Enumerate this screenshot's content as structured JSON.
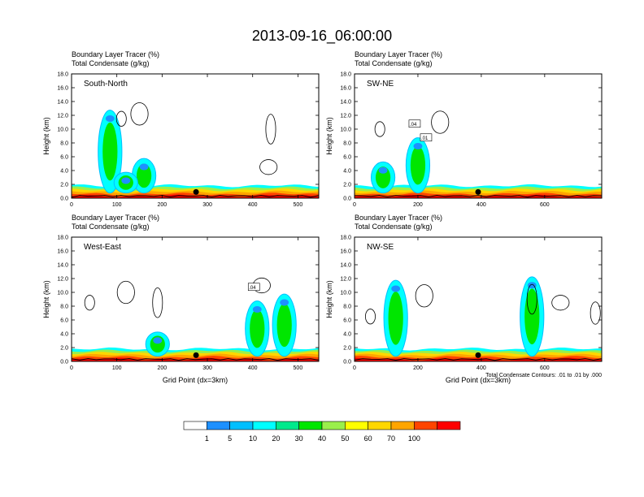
{
  "title": "2013-09-16_06:00:00",
  "colorbar": {
    "labels": [
      "1",
      "5",
      "10",
      "20",
      "30",
      "40",
      "50",
      "60",
      "70",
      "100"
    ],
    "colors": [
      "#ffffff",
      "#1e90ff",
      "#00bfff",
      "#00ffff",
      "#00e98c",
      "#00e600",
      "#9aef4b",
      "#ffff00",
      "#ffd700",
      "#ffa500",
      "#ff4500",
      "#ff0000"
    ]
  },
  "chart_data": [
    {
      "type": "heatmap",
      "section": "South-North",
      "subtitle1": "Boundary Layer Tracer   (%)",
      "subtitle2": "Total Condensate   (g/kg)",
      "ylabel": "Height (km)",
      "xlabel": "",
      "xlim": [
        0,
        546
      ],
      "ylim": [
        0,
        18
      ],
      "xticks": [
        "0",
        "100",
        "200",
        "300",
        "400",
        "500"
      ],
      "yticks": [
        "0.0",
        "2.0",
        "4.0",
        "6.0",
        "8.0",
        "10.0",
        "12.0",
        "14.0",
        "16.0",
        "18.0"
      ],
      "marker_x": 275,
      "cloud_contours": [
        [
          110,
          11.5
        ],
        [
          150,
          12.2
        ],
        [
          440,
          10.0
        ],
        [
          435,
          4.5
        ]
      ],
      "tracer_plumes": [
        [
          85,
          12.0
        ],
        [
          160,
          5.0
        ],
        [
          120,
          3.0
        ]
      ],
      "note": ""
    },
    {
      "type": "heatmap",
      "section": "SW-NE",
      "subtitle1": "Boundary Layer Tracer   (%)",
      "subtitle2": "Total Condensate   (g/kg)",
      "ylabel": "Height (km)",
      "xlabel": "",
      "xlim": [
        0,
        780
      ],
      "ylim": [
        0,
        18
      ],
      "xticks": [
        "0",
        "200",
        "400",
        "600"
      ],
      "yticks": [
        "0.0",
        "2.0",
        "4.0",
        "6.0",
        "8.0",
        "10.0",
        "12.0",
        "14.0",
        "16.0",
        "18.0"
      ],
      "marker_x": 390,
      "cloud_contours": [
        [
          80,
          10.0
        ],
        [
          270,
          11.0
        ]
      ],
      "tracer_plumes": [
        [
          200,
          8.0
        ],
        [
          90,
          4.5
        ]
      ],
      "contour_labels": [
        ".04",
        ".01"
      ],
      "note": ""
    },
    {
      "type": "heatmap",
      "section": "West-East",
      "subtitle1": "Boundary Layer Tracer   (%)",
      "subtitle2": "Total Condensate   (g/kg)",
      "ylabel": "Height (km)",
      "xlabel": "Grid Point (dx=3km)",
      "xlim": [
        0,
        546
      ],
      "ylim": [
        0,
        18
      ],
      "xticks": [
        "0",
        "100",
        "200",
        "300",
        "400",
        "500"
      ],
      "yticks": [
        "0.0",
        "2.0",
        "4.0",
        "6.0",
        "8.0",
        "10.0",
        "12.0",
        "14.0",
        "16.0",
        "18.0"
      ],
      "marker_x": 275,
      "cloud_contours": [
        [
          40,
          8.5
        ],
        [
          120,
          10.0
        ],
        [
          190,
          8.5
        ],
        [
          420,
          11.0
        ]
      ],
      "tracer_plumes": [
        [
          410,
          8.0
        ],
        [
          470,
          9.0
        ],
        [
          190,
          3.5
        ]
      ],
      "contour_labels": [
        ".04"
      ],
      "note": ""
    },
    {
      "type": "heatmap",
      "section": "NW-SE",
      "subtitle1": "Boundary Layer Tracer   (%)",
      "subtitle2": "Total Condensate   (g/kg)",
      "ylabel": "Height (km)",
      "xlabel": "Grid Point (dx=3km)",
      "xlim": [
        0,
        780
      ],
      "ylim": [
        0,
        18
      ],
      "xticks": [
        "0",
        "200",
        "400",
        "600"
      ],
      "yticks": [
        "0.0",
        "2.0",
        "4.0",
        "6.0",
        "8.0",
        "10.0",
        "12.0",
        "14.0",
        "16.0",
        "18.0"
      ],
      "marker_x": 390,
      "cloud_contours": [
        [
          50,
          6.5
        ],
        [
          220,
          9.5
        ],
        [
          560,
          9.0
        ],
        [
          650,
          8.5
        ],
        [
          760,
          7.0
        ]
      ],
      "tracer_plumes": [
        [
          560,
          11.5
        ],
        [
          130,
          11.0
        ]
      ],
      "note": "Total Condensate Contours: .01 to .01 by .000"
    }
  ]
}
